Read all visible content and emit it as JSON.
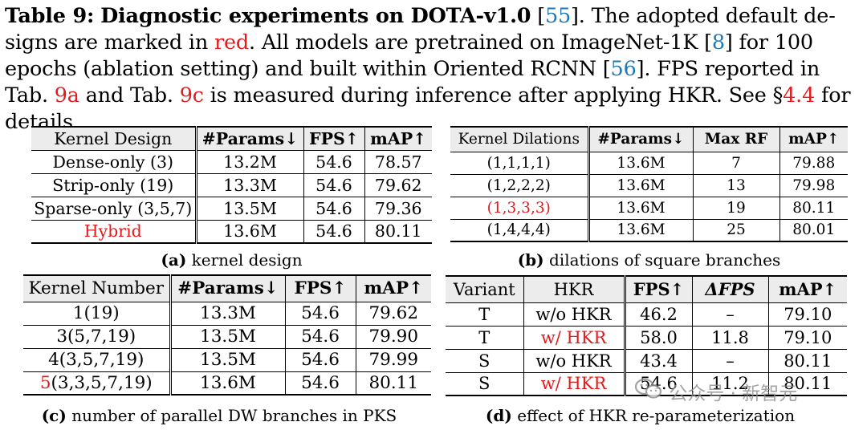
{
  "caption": {
    "label": "Table 9:",
    "title": "Diagnostic experiments on DOTA-v1.0",
    "ref_dota": "55",
    "s1": ". The adopted default de-signs are marked in",
    "red_word": "red",
    "s2": ". All models are pretrained on ImageNet-1K",
    "ref_imagenet": "8",
    "s3": "for 100 epochs (ablation setting) and built within Oriented RCNN",
    "ref_rcnn": "56",
    "s4": ". FPS reported in Tab.",
    "tab_a": "9a",
    "s5": "and Tab.",
    "tab_c": "9c",
    "s6": "is measured during inference after applying HKR. See §",
    "sec": "4.4",
    "s7": "for details."
  },
  "tables": {
    "a": {
      "headers": [
        "Kernel Design",
        "#Params↓",
        "FPS↑",
        "mAP↑"
      ],
      "rows": [
        [
          "Dense-only (3)",
          "13.2M",
          "54.6",
          "78.57"
        ],
        [
          "Strip-only (19)",
          "13.3M",
          "54.6",
          "79.62"
        ],
        [
          "Sparse-only (3,5,7)",
          "13.5M",
          "54.6",
          "79.36"
        ],
        [
          "Hybrid",
          "13.6M",
          "54.6",
          "80.11"
        ]
      ],
      "sub_label": "(a)",
      "sub_text": "kernel design"
    },
    "b": {
      "headers": [
        "Kernel Dilations",
        "#Params↓",
        "Max RF",
        "mAP↑"
      ],
      "rows": [
        [
          "(1,1,1,1)",
          "13.6M",
          "7",
          "79.88"
        ],
        [
          "(1,2,2,2)",
          "13.6M",
          "13",
          "79.98"
        ],
        [
          "(1,3,3,3)",
          "13.6M",
          "19",
          "80.11"
        ],
        [
          "(1,4,4,4)",
          "13.6M",
          "25",
          "80.01"
        ]
      ],
      "sub_label": "(b)",
      "sub_text": "dilations of square branches"
    },
    "c": {
      "headers": [
        "Kernel Number",
        "#Params↓",
        "FPS↑",
        "mAP↑"
      ],
      "rows": [
        [
          "1(19)",
          "13.3M",
          "54.6",
          "79.62"
        ],
        [
          "3(5,7,19)",
          "13.5M",
          "54.6",
          "79.90"
        ],
        [
          "4(3,5,7,19)",
          "13.5M",
          "54.6",
          "79.99"
        ],
        [
          "(3,3,5,7,19)",
          "13.6M",
          "54.6",
          "80.11"
        ]
      ],
      "last_row_red_prefix": "5",
      "sub_label": "(c)",
      "sub_text": "number of parallel DW branches in PKS"
    },
    "d": {
      "headers": [
        "Variant",
        "HKR",
        "FPS↑",
        "ΔFPS",
        "mAP↑"
      ],
      "rows": [
        [
          "T",
          "w/o HKR",
          "46.2",
          "–",
          "79.10"
        ],
        [
          "T",
          "w/ HKR",
          "58.0",
          "11.8",
          "79.10"
        ],
        [
          "S",
          "w/o HKR",
          "43.4",
          "–",
          "80.11"
        ],
        [
          "S",
          "w/ HKR",
          "54.6",
          "11.2",
          "80.11"
        ]
      ],
      "sub_label": "(d)",
      "sub_text": "effect of HKR re-parameterization"
    }
  },
  "watermark": {
    "text": "公众号 · 新智元"
  },
  "colors": {
    "highlight": "#e41a1c",
    "link": "#1f77b4",
    "header_bg": "#ececec"
  }
}
